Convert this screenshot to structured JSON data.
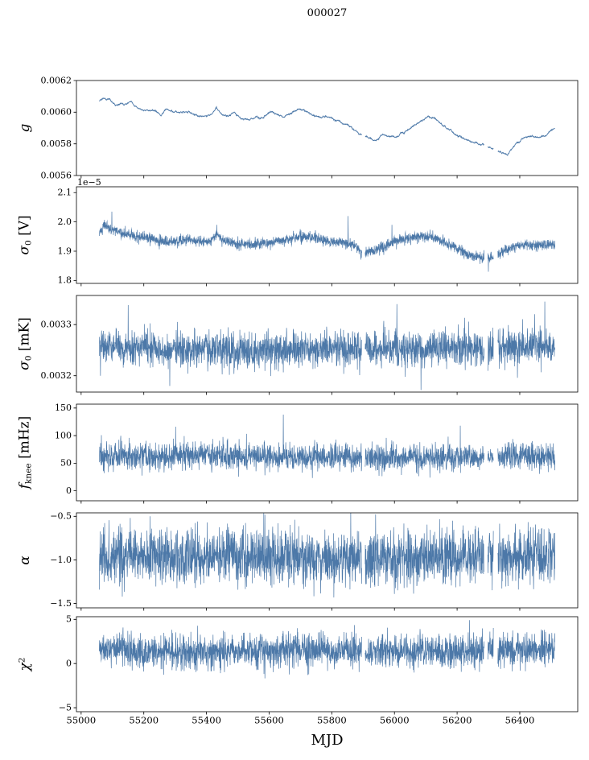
{
  "chart_data": {
    "type": "line",
    "title": "000027",
    "xlabel": "MJD",
    "background": "#ffffff",
    "axis_color": "#000000",
    "text_color": "#000000",
    "line_color": "#4c78a8",
    "xlim": [
      54985,
      56585
    ],
    "xticks": [
      55000,
      55200,
      55400,
      55600,
      55800,
      56000,
      56200,
      56400
    ],
    "xtick_labels": [
      "55000",
      "55200",
      "55400",
      "55600",
      "55800",
      "56000",
      "56200",
      "56400"
    ],
    "x_start": 55058,
    "x_end": 56512,
    "n_points": 2400,
    "data_gaps_mjd": [
      [
        55896,
        55906
      ],
      [
        56286,
        56298
      ],
      [
        56316,
        56330
      ]
    ],
    "panels": [
      {
        "name": "gain",
        "ylabel_text": "g",
        "ylabel_segments": [
          {
            "text": "g",
            "style": "italic"
          }
        ],
        "ylim": [
          0.0056,
          0.0062
        ],
        "ytick_vals": [
          0.0056,
          0.0058,
          0.006,
          0.0062
        ],
        "ytick_labels": [
          "0.0056",
          "0.0058",
          "0.0060",
          "0.0062"
        ],
        "offset_text": "",
        "series": {
          "noise_sigma": 1.8e-06,
          "ar": 0.85,
          "spikes": [],
          "trend": [
            [
              55058,
              0.00607
            ],
            [
              55072,
              0.00609
            ],
            [
              55090,
              0.00608
            ],
            [
              55110,
              0.00604
            ],
            [
              55135,
              0.00605
            ],
            [
              55162,
              0.00606
            ],
            [
              55185,
              0.00602
            ],
            [
              55210,
              0.00601
            ],
            [
              55235,
              0.00601
            ],
            [
              55255,
              0.00598
            ],
            [
              55272,
              0.00602
            ],
            [
              55295,
              0.006
            ],
            [
              55320,
              0.006
            ],
            [
              55345,
              0.006
            ],
            [
              55370,
              0.00598
            ],
            [
              55395,
              0.00597
            ],
            [
              55418,
              0.00599
            ],
            [
              55432,
              0.00603
            ],
            [
              55450,
              0.00598
            ],
            [
              55468,
              0.00597
            ],
            [
              55490,
              0.006
            ],
            [
              55510,
              0.00596
            ],
            [
              55535,
              0.00595
            ],
            [
              55558,
              0.00597
            ],
            [
              55580,
              0.00596
            ],
            [
              55600,
              0.006
            ],
            [
              55622,
              0.00599
            ],
            [
              55645,
              0.00597
            ],
            [
              55668,
              0.00599
            ],
            [
              55692,
              0.00602
            ],
            [
              55715,
              0.00601
            ],
            [
              55740,
              0.00598
            ],
            [
              55765,
              0.00597
            ],
            [
              55790,
              0.00597
            ],
            [
              55815,
              0.00595
            ],
            [
              55840,
              0.00593
            ],
            [
              55865,
              0.0059
            ],
            [
              55890,
              0.00586
            ],
            [
              55915,
              0.00584
            ],
            [
              55940,
              0.00582
            ],
            [
              55962,
              0.00586
            ],
            [
              55985,
              0.00584
            ],
            [
              56010,
              0.00585
            ],
            [
              56035,
              0.00588
            ],
            [
              56060,
              0.00591
            ],
            [
              56085,
              0.00595
            ],
            [
              56108,
              0.00597
            ],
            [
              56130,
              0.00596
            ],
            [
              56152,
              0.00592
            ],
            [
              56175,
              0.00589
            ],
            [
              56200,
              0.00585
            ],
            [
              56225,
              0.00583
            ],
            [
              56250,
              0.00581
            ],
            [
              56275,
              0.0058
            ],
            [
              56300,
              0.00578
            ],
            [
              56322,
              0.00576
            ],
            [
              56345,
              0.00574
            ],
            [
              56360,
              0.00573
            ],
            [
              56378,
              0.00578
            ],
            [
              56395,
              0.00581
            ],
            [
              56415,
              0.00584
            ],
            [
              56438,
              0.00585
            ],
            [
              56460,
              0.00584
            ],
            [
              56482,
              0.00585
            ],
            [
              56512,
              0.0059
            ]
          ]
        }
      },
      {
        "name": "sigma0_volts",
        "ylabel_text": "σ0 [V]",
        "ylabel_segments": [
          {
            "text": "σ",
            "style": "italic"
          },
          {
            "text": "0",
            "style": "sub"
          },
          {
            "text": " [V]",
            "style": "normal"
          }
        ],
        "ylim": [
          1.79,
          2.12
        ],
        "ytick_vals": [
          1.8,
          1.9,
          2.0,
          2.1
        ],
        "ytick_labels": [
          "1.8",
          "1.9",
          "2.0",
          "2.1"
        ],
        "offset_text": "1e−5",
        "series": {
          "noise_sigma": 0.009,
          "ar": 0,
          "spikes": [
            [
              55098,
              2.035
            ],
            [
              55433,
              1.99
            ],
            [
              55852,
              2.02
            ],
            [
              55992,
              1.99
            ],
            [
              56300,
              1.83
            ]
          ],
          "trend": [
            [
              55058,
              1.96
            ],
            [
              55075,
              1.99
            ],
            [
              55090,
              1.98
            ],
            [
              55110,
              1.97
            ],
            [
              55130,
              1.96
            ],
            [
              55160,
              1.955
            ],
            [
              55190,
              1.95
            ],
            [
              55220,
              1.945
            ],
            [
              55250,
              1.935
            ],
            [
              55280,
              1.93
            ],
            [
              55310,
              1.935
            ],
            [
              55340,
              1.94
            ],
            [
              55370,
              1.935
            ],
            [
              55400,
              1.93
            ],
            [
              55420,
              1.945
            ],
            [
              55435,
              1.955
            ],
            [
              55450,
              1.94
            ],
            [
              55480,
              1.93
            ],
            [
              55510,
              1.925
            ],
            [
              55540,
              1.92
            ],
            [
              55570,
              1.925
            ],
            [
              55600,
              1.93
            ],
            [
              55630,
              1.935
            ],
            [
              55660,
              1.94
            ],
            [
              55690,
              1.95
            ],
            [
              55720,
              1.95
            ],
            [
              55750,
              1.945
            ],
            [
              55780,
              1.935
            ],
            [
              55810,
              1.93
            ],
            [
              55840,
              1.93
            ],
            [
              55870,
              1.92
            ],
            [
              55900,
              1.89
            ],
            [
              55930,
              1.9
            ],
            [
              55960,
              1.915
            ],
            [
              55990,
              1.93
            ],
            [
              56020,
              1.94
            ],
            [
              56050,
              1.945
            ],
            [
              56080,
              1.95
            ],
            [
              56110,
              1.95
            ],
            [
              56140,
              1.94
            ],
            [
              56170,
              1.925
            ],
            [
              56200,
              1.91
            ],
            [
              56230,
              1.89
            ],
            [
              56260,
              1.88
            ],
            [
              56290,
              1.875
            ],
            [
              56320,
              1.88
            ],
            [
              56350,
              1.9
            ],
            [
              56380,
              1.915
            ],
            [
              56410,
              1.92
            ],
            [
              56440,
              1.92
            ],
            [
              56470,
              1.92
            ],
            [
              56512,
              1.925
            ]
          ]
        }
      },
      {
        "name": "sigma0_mK",
        "ylabel_text": "σ0 [mK]",
        "ylabel_segments": [
          {
            "text": "σ",
            "style": "italic"
          },
          {
            "text": "0",
            "style": "sub"
          },
          {
            "text": " [mK]",
            "style": "normal"
          }
        ],
        "ylim": [
          0.003168,
          0.003357
        ],
        "ytick_vals": [
          0.0032,
          0.0033
        ],
        "ytick_labels": [
          "0.0032",
          "0.0033"
        ],
        "offset_text": "",
        "series": {
          "noise_sigma": 1.7e-05,
          "ar": 0,
          "spikes": [
            [
              55150,
              0.003338
            ],
            [
              55283,
              0.00318
            ],
            [
              55905,
              0.003352
            ],
            [
              56008,
              0.00334
            ],
            [
              56085,
              0.003172
            ],
            [
              56480,
              0.003345
            ]
          ],
          "trend": [
            [
              55058,
              0.003262
            ],
            [
              55100,
              0.003258
            ],
            [
              55150,
              0.003252
            ],
            [
              55200,
              0.003255
            ],
            [
              55250,
              0.00325
            ],
            [
              55300,
              0.003252
            ],
            [
              55350,
              0.003249
            ],
            [
              55400,
              0.003251
            ],
            [
              55450,
              0.003253
            ],
            [
              55500,
              0.003247
            ],
            [
              55550,
              0.003246
            ],
            [
              55600,
              0.003248
            ],
            [
              55650,
              0.00325
            ],
            [
              55700,
              0.003252
            ],
            [
              55750,
              0.00325
            ],
            [
              55800,
              0.003253
            ],
            [
              55850,
              0.003252
            ],
            [
              55900,
              0.003255
            ],
            [
              55950,
              0.003253
            ],
            [
              56000,
              0.003255
            ],
            [
              56050,
              0.003252
            ],
            [
              56100,
              0.00325
            ],
            [
              56150,
              0.003253
            ],
            [
              56200,
              0.003255
            ],
            [
              56250,
              0.003254
            ],
            [
              56300,
              0.003256
            ],
            [
              56350,
              0.003257
            ],
            [
              56400,
              0.003258
            ],
            [
              56450,
              0.003259
            ],
            [
              56512,
              0.003258
            ]
          ]
        }
      },
      {
        "name": "f_knee",
        "ylabel_text": "fknee [mHz]",
        "ylabel_segments": [
          {
            "text": "f",
            "style": "italic"
          },
          {
            "text": "knee",
            "style": "sub"
          },
          {
            "text": " [mHz]",
            "style": "normal"
          }
        ],
        "ylim": [
          -18,
          157
        ],
        "ytick_vals": [
          0,
          50,
          100,
          150
        ],
        "ytick_labels": [
          "0",
          "50",
          "100",
          "150"
        ],
        "offset_text": "",
        "series": {
          "noise_sigma": 12,
          "ar": 0,
          "spikes": [
            [
              55645,
              138
            ],
            [
              56210,
              118
            ]
          ],
          "trend": [
            [
              55058,
              62
            ],
            [
              55300,
              63
            ],
            [
              55600,
              62
            ],
            [
              55900,
              60
            ],
            [
              56200,
              61
            ],
            [
              56512,
              62
            ]
          ]
        }
      },
      {
        "name": "alpha",
        "ylabel_text": "α",
        "ylabel_segments": [
          {
            "text": "α",
            "style": "italic"
          }
        ],
        "ylim": [
          -1.55,
          -0.46
        ],
        "ytick_vals": [
          -0.5,
          -1.0,
          -1.5
        ],
        "ytick_labels": [
          "−0.5",
          "−1.0",
          "−1.5"
        ],
        "offset_text": "",
        "series": {
          "noise_sigma": 0.16,
          "ar": 0,
          "spikes": [],
          "trend": [
            [
              55058,
              -0.96
            ],
            [
              55300,
              -0.95
            ],
            [
              55600,
              -0.97
            ],
            [
              55900,
              -0.98
            ],
            [
              56200,
              -0.96
            ],
            [
              56512,
              -0.95
            ]
          ]
        }
      },
      {
        "name": "chi2",
        "ylabel_text": "χ2",
        "ylabel_segments": [
          {
            "text": "χ",
            "style": "italic"
          },
          {
            "text": "2",
            "style": "sup"
          }
        ],
        "ylim": [
          -5.45,
          5.3
        ],
        "ytick_vals": [
          -5,
          0,
          5
        ],
        "ytick_labels": [
          "−5",
          "0",
          "5"
        ],
        "offset_text": "",
        "series": {
          "noise_sigma": 0.95,
          "ar": 0,
          "spikes": [],
          "trend": [
            [
              55058,
              1.5
            ],
            [
              55250,
              1.4
            ],
            [
              55450,
              1.3
            ],
            [
              55650,
              1.6
            ],
            [
              55850,
              1.4
            ],
            [
              56050,
              1.35
            ],
            [
              56250,
              1.3
            ],
            [
              56400,
              1.6
            ],
            [
              56512,
              1.55
            ]
          ]
        }
      }
    ]
  }
}
